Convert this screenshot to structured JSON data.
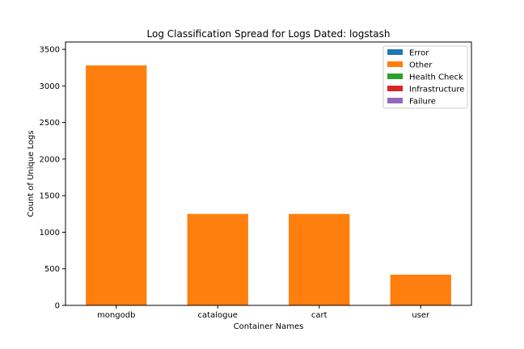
{
  "chart_data": {
    "type": "bar",
    "stacked": true,
    "title": "Log Classification Spread for Logs Dated: logstash",
    "xlabel": "Container Names",
    "ylabel": "Count of Unique Logs",
    "categories": [
      "mongodb",
      "catalogue",
      "cart",
      "user"
    ],
    "series": [
      {
        "name": "Error",
        "color": "#1f77b4",
        "values": [
          0,
          0,
          0,
          0
        ]
      },
      {
        "name": "Other",
        "color": "#ff7f0e",
        "values": [
          3280,
          1250,
          1250,
          420
        ]
      },
      {
        "name": "Health Check",
        "color": "#2ca02c",
        "values": [
          0,
          0,
          0,
          0
        ]
      },
      {
        "name": "Infrastructure",
        "color": "#d62728",
        "values": [
          0,
          0,
          0,
          0
        ]
      },
      {
        "name": "Failure",
        "color": "#9467bd",
        "values": [
          0,
          0,
          0,
          0
        ]
      }
    ],
    "ylim": [
      0,
      3600
    ],
    "yticks": [
      0,
      500,
      1000,
      1500,
      2000,
      2500,
      3000,
      3500
    ],
    "grid": false,
    "legend_position": "top-right"
  }
}
